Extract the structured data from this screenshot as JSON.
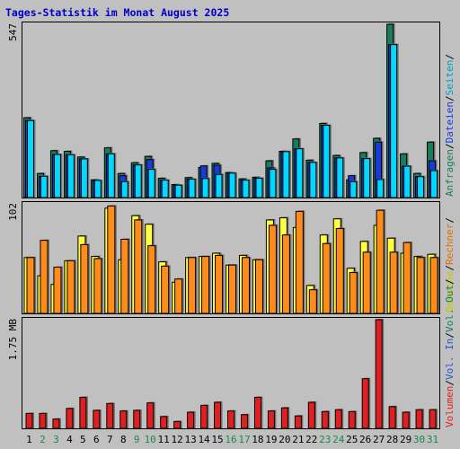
{
  "chart_data": {
    "type": "bar",
    "title": "Tages-Statistik im Monat August 2025",
    "categories": [
      "1",
      "2",
      "3",
      "4",
      "5",
      "6",
      "7",
      "8",
      "9",
      "10",
      "11",
      "12",
      "13",
      "14",
      "15",
      "16",
      "17",
      "18",
      "19",
      "20",
      "21",
      "22",
      "23",
      "24",
      "25",
      "26",
      "27",
      "28",
      "29",
      "30",
      "31"
    ],
    "weekend_days": [
      "2",
      "3",
      "9",
      "10",
      "16",
      "17",
      "23",
      "24",
      "30",
      "31"
    ],
    "panels": [
      {
        "name": "hits",
        "ymax_label": "547",
        "ylim": [
          0,
          547
        ],
        "legend": [
          "Anfragen",
          "/",
          "Dateien",
          "/",
          "Seiten",
          "/"
        ],
        "series": [
          {
            "name": "Anfragen",
            "color": "#1a7c5e",
            "values": [
              252,
              76,
              148,
              146,
              128,
              56,
              157,
              76,
              110,
              130,
              61,
              41,
              63,
              95,
              108,
              79,
              59,
              64,
              116,
              146,
              185,
              118,
              234,
              133,
              56,
              142,
              187,
              547,
              138,
              76,
              175
            ]
          },
          {
            "name": "Dateien",
            "color": "#1a3adb",
            "values": [
              243,
              67,
              136,
              135,
              122,
              54,
              138,
              69,
              103,
              120,
              55,
              39,
              58,
              100,
              102,
              77,
              55,
              61,
              94,
              145,
              154,
              111,
              228,
              125,
              69,
              123,
              175,
              483,
              99,
              66,
              116
            ]
          },
          {
            "name": "Seiten",
            "color": "#00d8ff",
            "values": [
              243,
              67,
              136,
              135,
              122,
              54,
              138,
              50,
              103,
              89,
              55,
              39,
              58,
              60,
              73,
              77,
              55,
              61,
              89,
              145,
              154,
              111,
              228,
              125,
              50,
              123,
              57,
              483,
              99,
              66,
              85
            ]
          }
        ]
      },
      {
        "name": "visits",
        "ymax_label": "102",
        "ylim": [
          0,
          102
        ],
        "legend": [
          "Besuche",
          "/",
          "Rechner",
          "/"
        ],
        "series": [
          {
            "name": "Besuche",
            "color": "#ffff40",
            "values": [
              52,
              35,
              27,
              49,
              72,
              53,
              98,
              50,
              91,
              83,
              48,
              29,
              52,
              53,
              56,
              45,
              54,
              50,
              87,
              89,
              80,
              26,
              73,
              88,
              42,
              67,
              82,
              70,
              56,
              53,
              55
            ]
          },
          {
            "name": "Rechner",
            "color": "#ff8c1a",
            "values": [
              52,
              68,
              43,
              49,
              64,
              51,
              100,
              69,
              87,
              63,
              44,
              32,
              52,
              53,
              54,
              45,
              52,
              50,
              82,
              73,
              95,
              22,
              65,
              79,
              38,
              57,
              96,
              57,
              66,
              52,
              52
            ]
          }
        ]
      },
      {
        "name": "volume",
        "ymax_label": "1.75 MB",
        "ylim": [
          0,
          1.75
        ],
        "legend": [
          "Volumen",
          "/",
          "Vol. In",
          "/",
          "Vol. Out",
          "/"
        ],
        "series": [
          {
            "name": "Volumen",
            "color": "#e02020",
            "values": [
              0.24,
              0.24,
              0.15,
              0.32,
              0.5,
              0.29,
              0.4,
              0.28,
              0.29,
              0.41,
              0.19,
              0.11,
              0.26,
              0.37,
              0.42,
              0.28,
              0.22,
              0.5,
              0.28,
              0.33,
              0.2,
              0.42,
              0.27,
              0.3,
              0.27,
              0.8,
              1.75,
              0.35,
              0.26,
              0.3,
              0.3
            ]
          }
        ]
      }
    ],
    "legend_colors": {
      "Anfragen": "#1a7c5e",
      "Dateien": "#1a3adb",
      "Seiten": "#00a0c8",
      "Besuche": "#c8c800",
      "Rechner": "#e07000",
      "Volumen": "#e02020",
      "Vol. In": "#2a55c8",
      "Vol. Out": "#1a7c5e",
      "slash": "#000000"
    },
    "day_colors": {
      "weekday": "#000000",
      "weekend": "#1a8a4a"
    }
  }
}
